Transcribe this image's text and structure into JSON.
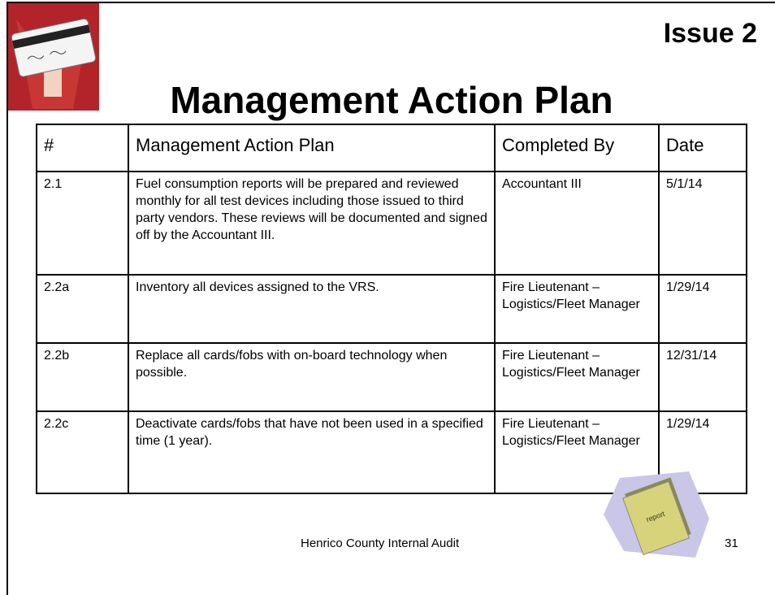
{
  "header": {
    "issue": "Issue 2",
    "title": "Management Action Plan"
  },
  "table": {
    "headers": [
      "#",
      "Management Action Plan",
      "Completed By",
      "Date"
    ],
    "rows": [
      [
        "2.1",
        "Fuel consumption reports will be prepared and reviewed monthly for all test devices including those issued to third party vendors. These reviews will be documented and signed off by the Accountant III.",
        "Accountant III",
        "5/1/14"
      ],
      [
        "2.2a",
        "Inventory all devices assigned to the VRS.",
        "Fire Lieutenant – Logistics/Fleet Manager",
        "1/29/14"
      ],
      [
        "2.2b",
        "Replace all cards/fobs with on-board technology when possible.",
        "Fire Lieutenant – Logistics/Fleet Manager",
        "12/31/14"
      ],
      [
        "2.2c",
        "Deactivate cards/fobs that have not been used in a specified time (1 year).",
        "Fire Lieutenant – Logistics/Fleet Manager",
        "1/29/14"
      ]
    ]
  },
  "clipart": {
    "label": "report"
  },
  "footer": {
    "text": "Henrico County Internal Audit",
    "page": "31"
  }
}
